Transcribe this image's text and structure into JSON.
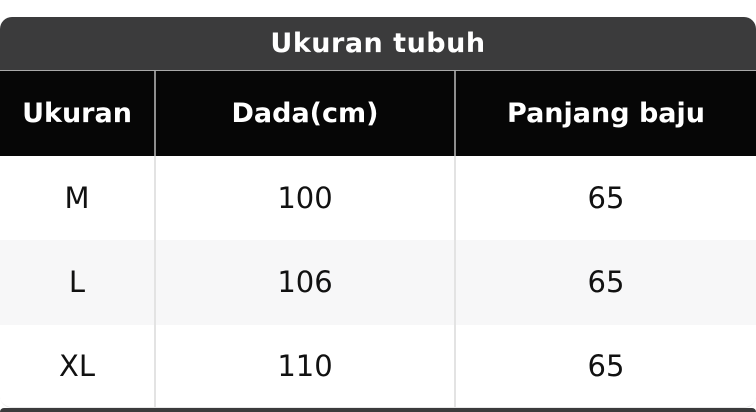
{
  "table": {
    "title": "Ukuran tubuh",
    "columns": [
      "Ukuran",
      "Dada(cm)",
      "Panjang baju"
    ],
    "rows": [
      [
        "M",
        "100",
        "65"
      ],
      [
        "L",
        "106",
        "65"
      ],
      [
        "XL",
        "110",
        "65"
      ]
    ]
  },
  "colors": {
    "title_bar_bg": "#3b3b3c",
    "header_row_bg": "#060606",
    "header_divider": "#8d8d8d",
    "body_divider": "#e3e3e3",
    "alt_row_bg": "#f7f7f8",
    "text_light": "#ffffff",
    "text_dark": "#111111",
    "next_section_bg": "#3b3b3c"
  }
}
